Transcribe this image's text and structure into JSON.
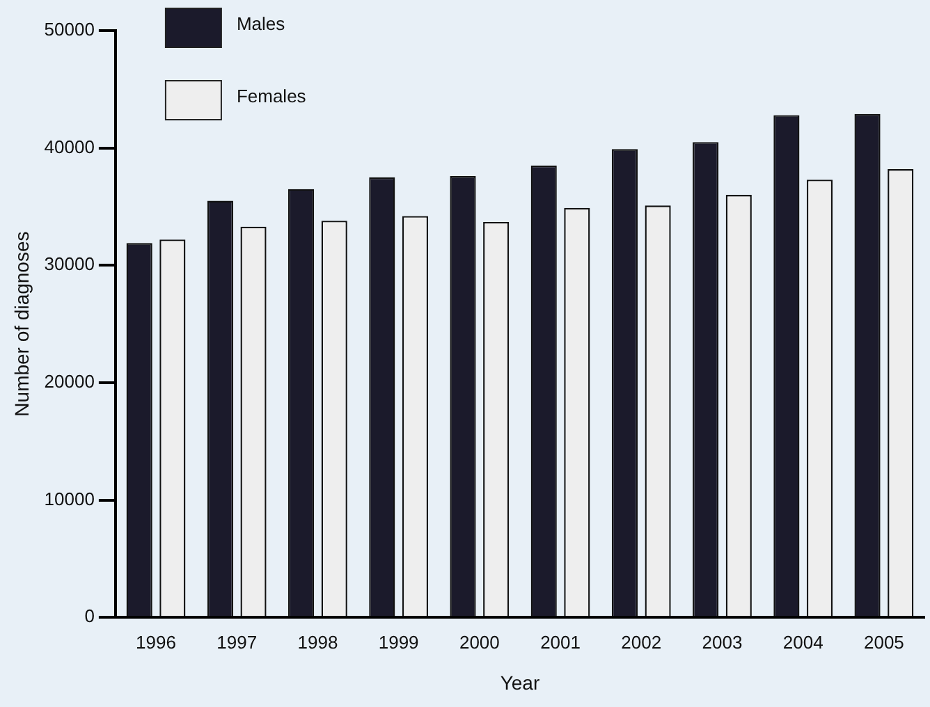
{
  "chart_data": {
    "type": "bar",
    "xlabel": "Year",
    "ylabel": "Number of diagnoses",
    "categories": [
      "1996",
      "1997",
      "1998",
      "1999",
      "2000",
      "2001",
      "2002",
      "2003",
      "2004",
      "2005"
    ],
    "series": [
      {
        "name": "Males",
        "color": "#1b1a2b",
        "values": [
          31900,
          35500,
          36500,
          37500,
          37600,
          38500,
          39900,
          40500,
          42800,
          42900
        ]
      },
      {
        "name": "Females",
        "color": "#eeeeee",
        "values": [
          32200,
          33300,
          33800,
          34200,
          33700,
          34900,
          35100,
          36000,
          37300,
          38200
        ]
      }
    ],
    "ylim": [
      0,
      50000
    ],
    "yticks": [
      0,
      10000,
      20000,
      30000,
      40000,
      50000
    ],
    "grid": false,
    "legend": "top left"
  }
}
